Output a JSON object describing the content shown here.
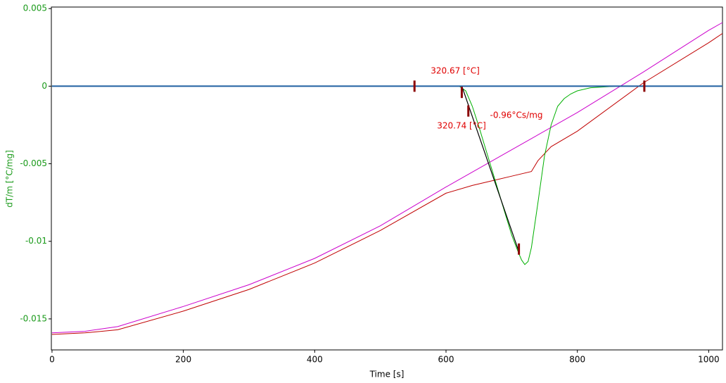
{
  "chart_data": {
    "type": "line",
    "xlabel": "Time [s]",
    "ylabel": "dT/m  [°C/mg]",
    "ylabel_color": "#1a9a1a",
    "xlim": [
      -1,
      1021
    ],
    "ylim": [
      -0.017,
      0.0051
    ],
    "xticks": [
      0,
      200,
      400,
      600,
      800,
      1000
    ],
    "yticks": [
      0.005,
      0,
      -0.005,
      -0.01,
      -0.015
    ],
    "series": [
      {
        "color": "#cc00cc",
        "x": [
          0,
          50,
          100,
          200,
          300,
          400,
          500,
          600,
          700,
          800,
          900,
          1000,
          1021
        ],
        "values": [
          -0.0159,
          -0.0158,
          -0.0155,
          -0.0142,
          -0.0128,
          -0.0111,
          -0.009,
          -0.0065,
          -0.0041,
          -0.0017,
          0.0009,
          0.0036,
          0.0041
        ]
      },
      {
        "color": "#c00000",
        "x": [
          0,
          50,
          100,
          200,
          300,
          400,
          500,
          600,
          640,
          660,
          700,
          730,
          740,
          760,
          800,
          900,
          1000,
          1021
        ],
        "values": [
          -0.016,
          -0.0159,
          -0.0157,
          -0.0145,
          -0.0131,
          -0.0114,
          -0.0093,
          -0.0069,
          -0.0064,
          -0.0062,
          -0.0058,
          -0.0055,
          -0.0048,
          -0.0039,
          -0.0029,
          0.0002,
          0.0028,
          0.0034
        ]
      },
      {
        "color": "#00b000",
        "x": [
          0,
          600,
          620,
          630,
          640,
          650,
          660,
          670,
          680,
          690,
          700,
          710,
          715,
          720,
          725,
          730,
          740,
          750,
          760,
          770,
          780,
          790,
          800,
          820,
          840,
          860,
          1021
        ],
        "values": [
          0,
          0,
          0,
          -0.0003,
          -0.0013,
          -0.0026,
          -0.004,
          -0.0054,
          -0.0068,
          -0.0082,
          -0.0096,
          -0.0107,
          -0.0112,
          -0.0115,
          -0.0113,
          -0.0104,
          -0.0075,
          -0.0045,
          -0.0025,
          -0.0013,
          -0.0008,
          -0.0005,
          -0.0003,
          -0.0001,
          -5e-05,
          0,
          0
        ]
      },
      {
        "color": "#1f5fa0",
        "x": [
          0,
          1021
        ],
        "values": [
          0,
          0
        ]
      }
    ],
    "tangent": {
      "color": "#000000",
      "x": [
        625,
        712
      ],
      "values": [
        -0.0001,
        -0.0108
      ]
    },
    "markers": {
      "color": "#8b0000",
      "x": [
        552,
        624,
        634,
        711,
        902
      ],
      "values": [
        0,
        -0.0004,
        -0.0016,
        -0.0105,
        0
      ]
    },
    "annotations": [
      "320.67 [°C]",
      "320.74 [°C]",
      "-0.96°Cs/mg"
    ],
    "annotation_color": "#e00000"
  }
}
